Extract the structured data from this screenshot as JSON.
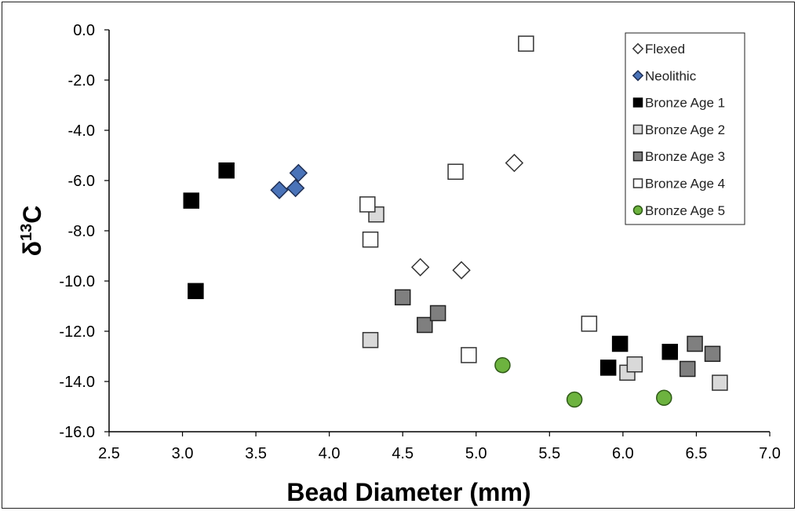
{
  "chart_data": {
    "type": "scatter",
    "xlabel": "Bead Diameter (mm)",
    "ylabel_main": "δ",
    "ylabel_sup": "13",
    "ylabel_tail": "C",
    "xlim": [
      2.5,
      7.0
    ],
    "ylim": [
      -16.0,
      0.0
    ],
    "x_ticks": [
      2.5,
      3.0,
      3.5,
      4.0,
      4.5,
      5.0,
      5.5,
      6.0,
      6.5,
      7.0
    ],
    "x_tick_labels": [
      "2.5",
      "3.0",
      "3.5",
      "4.0",
      "4.5",
      "5.0",
      "5.5",
      "6.0",
      "6.5",
      "7.0"
    ],
    "y_ticks": [
      0,
      -2,
      -4,
      -6,
      -8,
      -10,
      -12,
      -14,
      -16
    ],
    "y_tick_labels": [
      "0.0",
      "-2.0",
      "-4.0",
      "-6.0",
      "-8.0",
      "-10.0",
      "-12.0",
      "-14.0",
      "-16.0"
    ],
    "grid": false,
    "legend_position": "top-right",
    "series": [
      {
        "name": "Flexed",
        "marker": "diamond",
        "fill": "#ffffff",
        "stroke": "#333333",
        "points": [
          [
            5.26,
            -5.3
          ],
          [
            4.62,
            -9.45
          ],
          [
            4.9,
            -9.57
          ]
        ]
      },
      {
        "name": "Neolithic",
        "marker": "diamond",
        "fill": "#4a73b8",
        "stroke": "#1f2f55",
        "points": [
          [
            3.66,
            -6.38
          ],
          [
            3.77,
            -6.3
          ],
          [
            3.79,
            -5.7
          ]
        ]
      },
      {
        "name": "Bronze Age 1",
        "marker": "square",
        "fill": "#000000",
        "stroke": "#000000",
        "points": [
          [
            3.3,
            -5.6
          ],
          [
            3.06,
            -6.8
          ],
          [
            3.09,
            -10.4
          ],
          [
            5.98,
            -12.5
          ],
          [
            5.9,
            -13.45
          ],
          [
            6.32,
            -12.82
          ]
        ]
      },
      {
        "name": "Bronze Age 2",
        "marker": "square",
        "fill": "#d9d9d9",
        "stroke": "#333333",
        "points": [
          [
            4.32,
            -7.35
          ],
          [
            4.28,
            -12.35
          ],
          [
            6.03,
            -13.65
          ],
          [
            6.08,
            -13.32
          ],
          [
            6.66,
            -14.05
          ]
        ]
      },
      {
        "name": "Bronze Age 3",
        "marker": "square",
        "fill": "#7f7f7f",
        "stroke": "#222222",
        "points": [
          [
            4.5,
            -10.65
          ],
          [
            4.65,
            -11.75
          ],
          [
            4.74,
            -11.28
          ],
          [
            6.44,
            -13.5
          ],
          [
            6.49,
            -12.5
          ],
          [
            6.61,
            -12.9
          ]
        ]
      },
      {
        "name": "Bronze Age 4",
        "marker": "square",
        "fill": "#ffffff",
        "stroke": "#333333",
        "points": [
          [
            5.34,
            -0.55
          ],
          [
            4.86,
            -5.65
          ],
          [
            4.26,
            -6.95
          ],
          [
            4.28,
            -8.35
          ],
          [
            4.95,
            -12.95
          ],
          [
            5.77,
            -11.7
          ]
        ]
      },
      {
        "name": "Bronze Age 5",
        "marker": "circle",
        "fill": "#6db33f",
        "stroke": "#2f5a17",
        "points": [
          [
            5.18,
            -13.35
          ],
          [
            5.67,
            -14.72
          ],
          [
            6.28,
            -14.65
          ]
        ]
      }
    ]
  }
}
